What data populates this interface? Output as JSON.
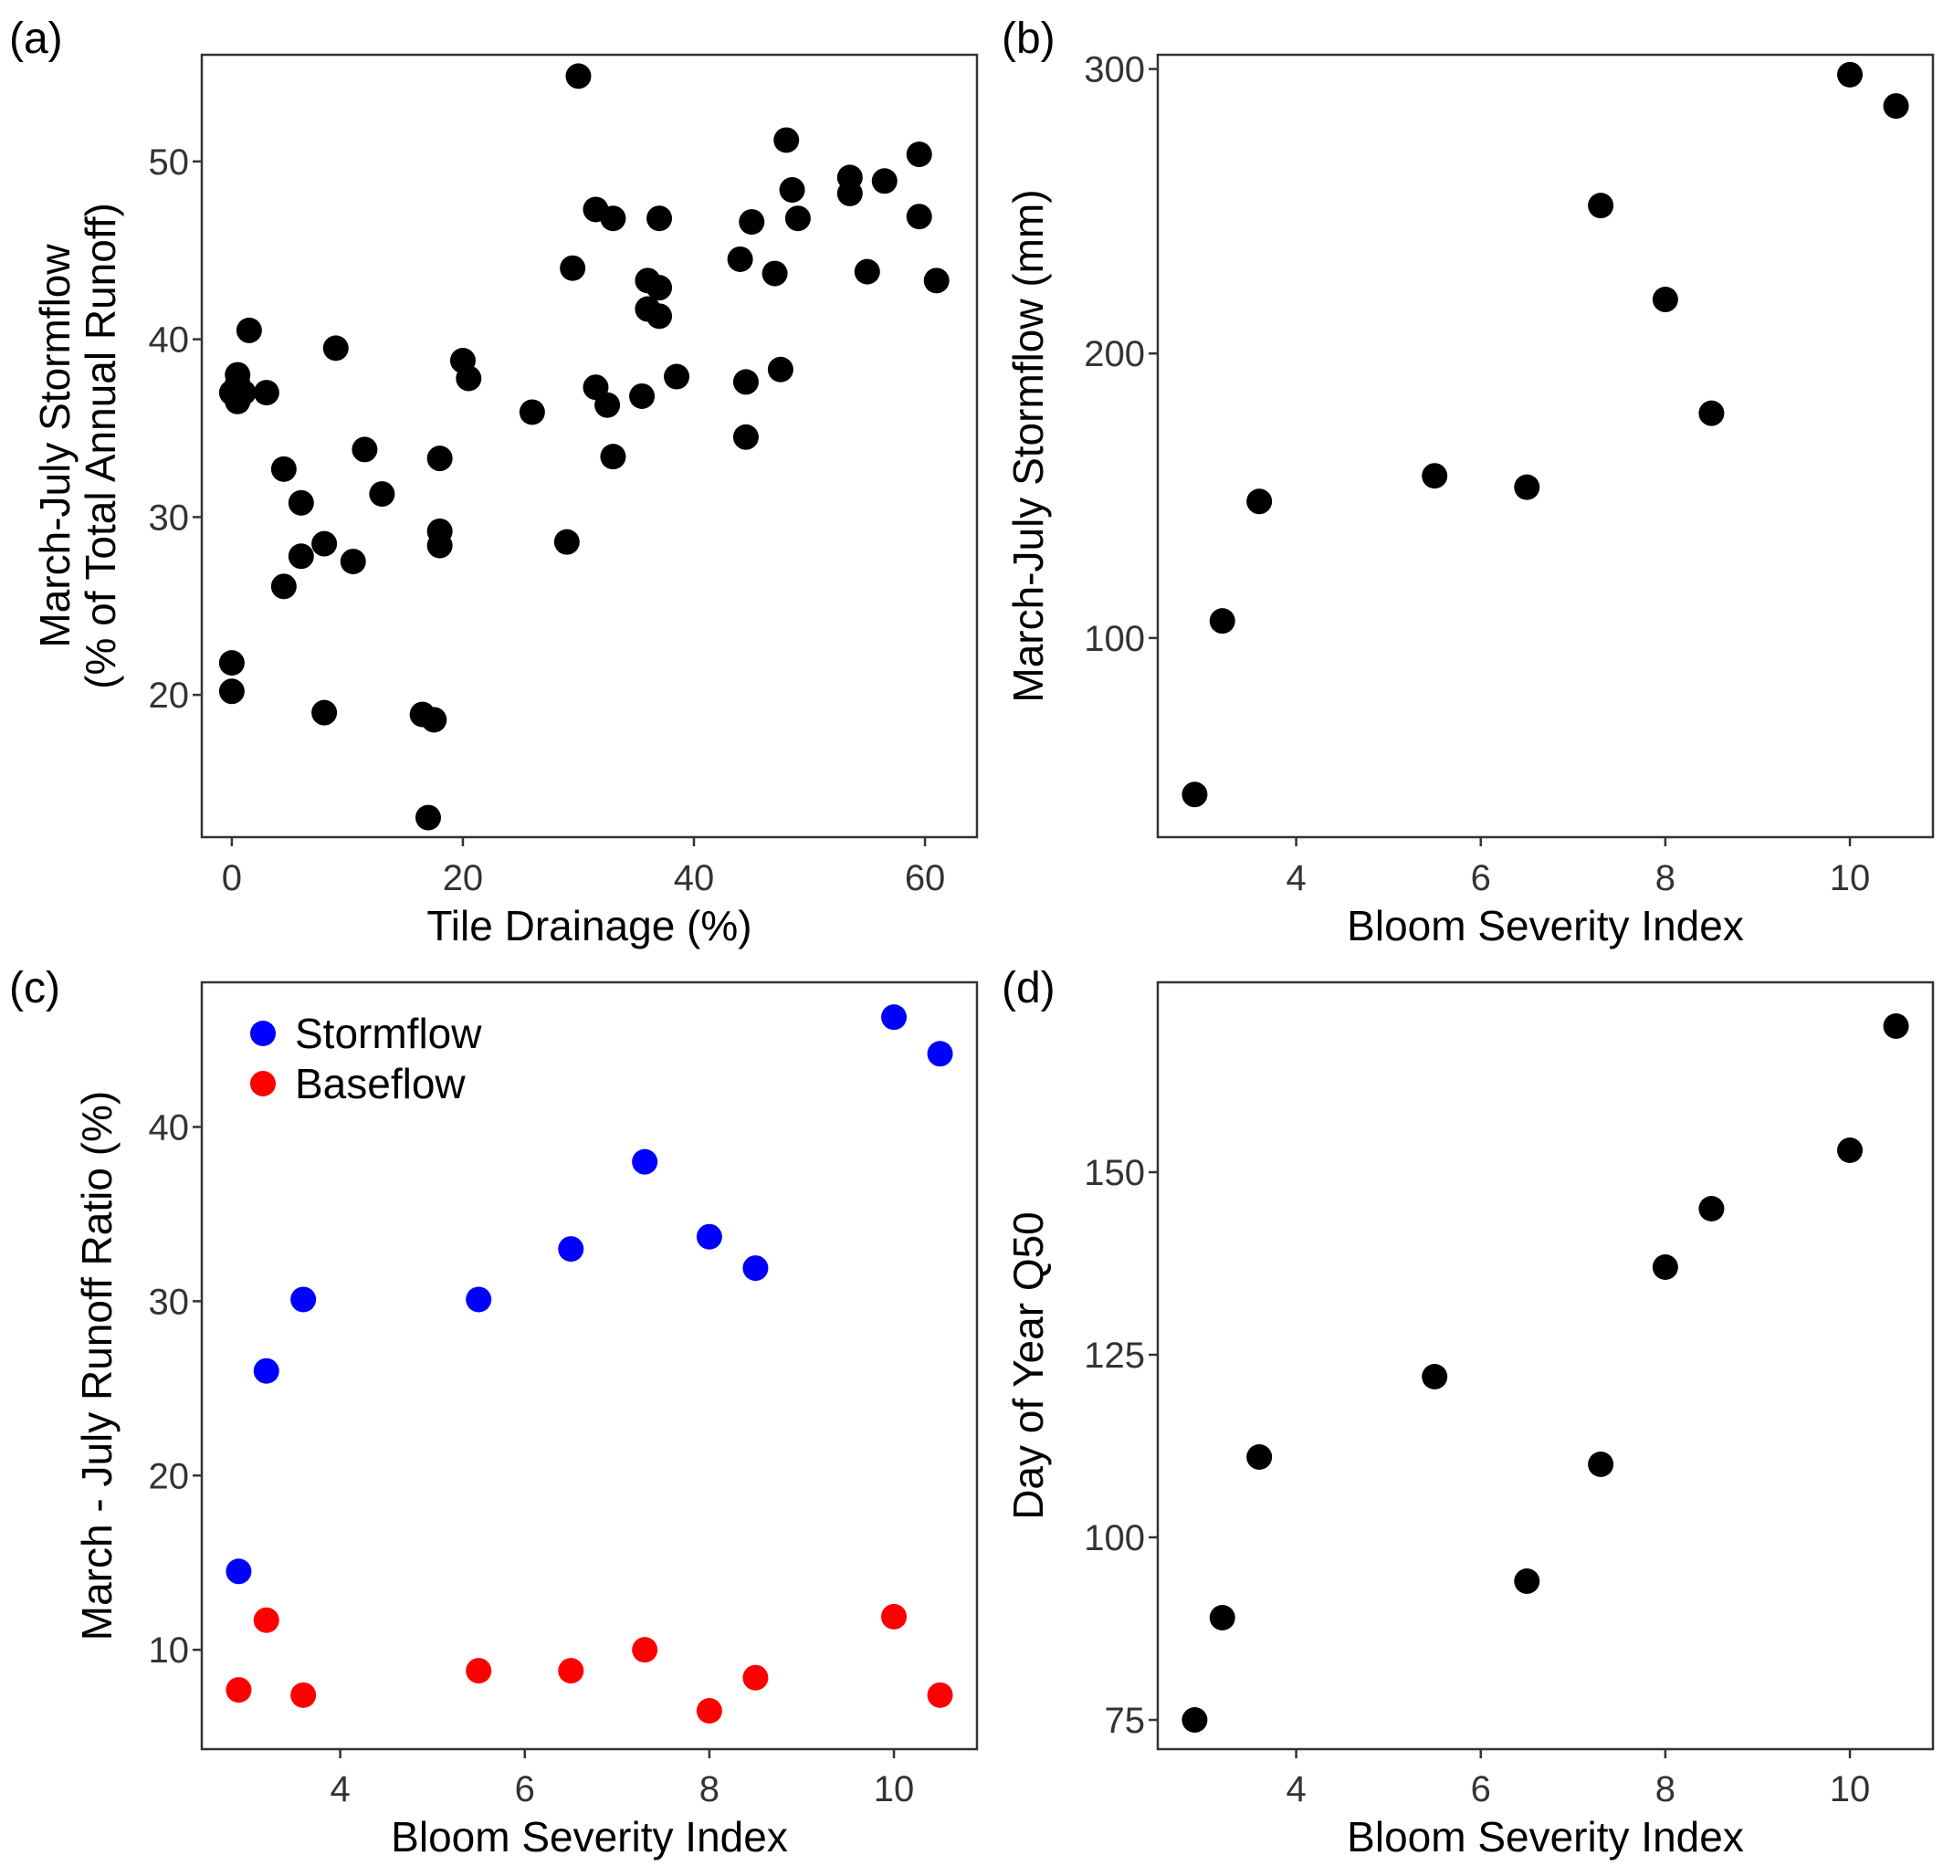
{
  "chart_data": [
    {
      "type": "scatter",
      "panel_label": "(a)",
      "xlabel": "Tile Drainage (%)",
      "ylabel_lines": [
        "March-July Stormflow",
        "(% of Total Annual Runoff)"
      ],
      "xlim": [
        -2.6,
        64.5
      ],
      "ylim": [
        12,
        56
      ],
      "xticks": [
        0,
        20,
        40,
        60
      ],
      "yticks": [
        20,
        30,
        40,
        50
      ],
      "point_color": "#000000",
      "series": [
        {
          "x": [
            0,
            0.5,
            0.5,
            0.5,
            1,
            1.5,
            3,
            0,
            0,
            4.5,
            4.5,
            6,
            6,
            8,
            8,
            9,
            10.5,
            11.5,
            13,
            16.5,
            17,
            17.5,
            18,
            18,
            18,
            20,
            20.5,
            26,
            29,
            29.5,
            30,
            31.5,
            31.5,
            32.5,
            33,
            33,
            35.5,
            36,
            36,
            37,
            37,
            37,
            38.5,
            44,
            44.5,
            44.5,
            45,
            47,
            47.5,
            48,
            48.5,
            49,
            53.5,
            53.5,
            56.5,
            55,
            59.5,
            59.5,
            61
          ],
          "y": [
            37,
            38,
            36.5,
            37.5,
            37,
            40.5,
            37,
            21.8,
            20.2,
            32.7,
            26.1,
            30.8,
            27.8,
            28.5,
            19,
            39.5,
            27.5,
            33.8,
            31.3,
            18.9,
            13.1,
            18.6,
            33.3,
            29.2,
            28.4,
            38.8,
            37.8,
            35.9,
            28.6,
            44,
            54.8,
            47.3,
            37.3,
            36.3,
            33.4,
            46.8,
            36.8,
            43.3,
            41.7,
            42.9,
            41.3,
            46.8,
            37.9,
            44.5,
            37.6,
            34.5,
            46.6,
            43.7,
            38.3,
            51.2,
            48.4,
            46.8,
            48.2,
            49.1,
            48.9,
            43.8,
            50.4,
            46.9,
            43.3
          ]
        }
      ]
    },
    {
      "type": "scatter",
      "panel_label": "(b)",
      "xlabel": "Bloom Severity Index",
      "ylabel_lines": [
        "March-July Stormflow (mm)"
      ],
      "xlim": [
        2.5,
        10.9
      ],
      "ylim": [
        30,
        305
      ],
      "xticks": [
        4,
        6,
        8,
        10
      ],
      "yticks": [
        100,
        200,
        300
      ],
      "point_color": "#000000",
      "series": [
        {
          "x": [
            2.9,
            3.2,
            3.6,
            5.5,
            6.5,
            7.3,
            8,
            8.5,
            10,
            10.5
          ],
          "y": [
            45,
            106,
            148,
            157,
            153,
            252,
            219,
            179,
            298,
            287
          ]
        }
      ]
    },
    {
      "type": "scatter",
      "panel_label": "(c)",
      "xlabel": "Bloom Severity Index",
      "ylabel_lines": [
        "March - July Runoff Ratio (%)"
      ],
      "xlim": [
        2.5,
        10.9
      ],
      "ylim": [
        4.3,
        48.3
      ],
      "xticks": [
        4,
        6,
        8,
        10
      ],
      "yticks": [
        10,
        20,
        30,
        40
      ],
      "legend_position": "top-left",
      "series": [
        {
          "name": "Stormflow",
          "color": "#0000ff",
          "x": [
            2.9,
            3.2,
            3.6,
            5.5,
            6.5,
            7.3,
            8,
            8.5,
            10,
            10.5
          ],
          "y": [
            14.5,
            26,
            30.1,
            30.1,
            33,
            38,
            33.7,
            31.9,
            46.3,
            44.2
          ]
        },
        {
          "name": "Baseflow",
          "color": "#ff0000",
          "x": [
            2.9,
            3.2,
            3.6,
            5.5,
            6.5,
            7.3,
            8,
            8.5,
            10,
            10.5
          ],
          "y": [
            7.7,
            11.7,
            7.4,
            8.8,
            8.8,
            10,
            6.5,
            8.4,
            11.9,
            7.4
          ]
        }
      ]
    },
    {
      "type": "scatter",
      "panel_label": "(d)",
      "xlabel": "Bloom Severity Index",
      "ylabel_lines": [
        "Day of Year Q50"
      ],
      "xlim": [
        2.5,
        10.9
      ],
      "ylim": [
        71,
        176
      ],
      "xticks": [
        4,
        6,
        8,
        10
      ],
      "yticks": [
        75,
        100,
        125,
        150
      ],
      "point_color": "#000000",
      "series": [
        {
          "x": [
            2.9,
            3.2,
            3.6,
            5.5,
            6.5,
            7.3,
            8,
            8.5,
            10,
            10.5
          ],
          "y": [
            75,
            89,
            111,
            122,
            94,
            110,
            137,
            145,
            153,
            170
          ]
        }
      ]
    }
  ]
}
